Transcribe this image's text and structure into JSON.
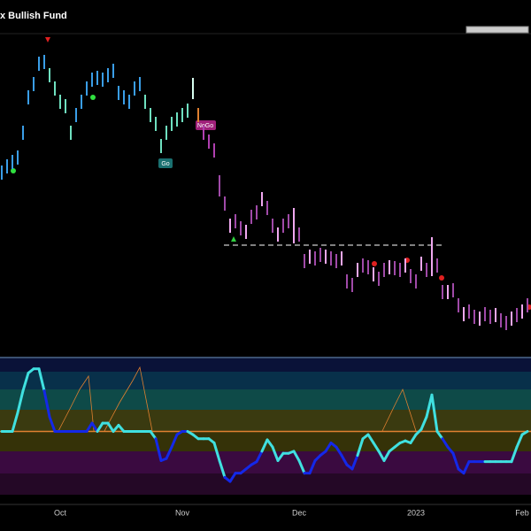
{
  "chart_data": {
    "type": "ohlc",
    "title": "x Bullish Fund",
    "annotations": [
      "NoGo",
      "Go"
    ],
    "categories": [
      null,
      null,
      null,
      null,
      null,
      null,
      null,
      null,
      null,
      null,
      null,
      "Oct",
      null,
      null,
      null,
      null,
      null,
      null,
      null,
      null,
      null,
      null,
      null,
      null,
      null,
      null,
      null,
      null,
      null,
      null,
      null,
      null,
      null,
      null,
      "Nov",
      null,
      null,
      null,
      null,
      null,
      null,
      null,
      null,
      null,
      null,
      null,
      null,
      null,
      null,
      null,
      null,
      null,
      null,
      null,
      null,
      null,
      "Dec",
      null,
      null,
      null,
      null,
      null,
      null,
      null,
      null,
      null,
      null,
      null,
      null,
      null,
      null,
      null,
      null,
      null,
      null,
      null,
      null,
      null,
      "2023",
      null,
      null,
      null,
      null,
      null,
      null,
      null,
      null,
      null,
      null,
      null,
      null,
      null,
      null,
      null,
      null,
      null,
      null,
      null,
      "Feb",
      null
    ],
    "highs": [
      213,
      220,
      225,
      230,
      258,
      298,
      313,
      336,
      338,
      323,
      308,
      293,
      288,
      258,
      278,
      293,
      308,
      318,
      320,
      318,
      323,
      328,
      303,
      298,
      293,
      308,
      313,
      293,
      278,
      268,
      243,
      258,
      268,
      273,
      278,
      283,
      312,
      278,
      258,
      248,
      238,
      202,
      178,
      153,
      158,
      150,
      146,
      163,
      168,
      183,
      173,
      153,
      143,
      153,
      158,
      165,
      143,
      113,
      118,
      116,
      120,
      118,
      116,
      113,
      116,
      90,
      86,
      103,
      108,
      106,
      98,
      93,
      103,
      106,
      105,
      103,
      108,
      96,
      90,
      110,
      103,
      132,
      108,
      78,
      78,
      80,
      63,
      53,
      56,
      50,
      48,
      53,
      50,
      52,
      46,
      43,
      48,
      52,
      56,
      63
    ],
    "lows": [
      197,
      204,
      209,
      214,
      242,
      282,
      297,
      320,
      322,
      307,
      292,
      277,
      272,
      242,
      262,
      277,
      292,
      302,
      304,
      302,
      307,
      312,
      287,
      282,
      277,
      292,
      297,
      277,
      262,
      252,
      227,
      242,
      252,
      257,
      262,
      267,
      288,
      262,
      242,
      232,
      222,
      178,
      162,
      137,
      142,
      134,
      130,
      147,
      152,
      167,
      157,
      137,
      127,
      137,
      142,
      125,
      127,
      97,
      102,
      100,
      104,
      102,
      100,
      97,
      100,
      74,
      70,
      87,
      92,
      90,
      82,
      77,
      87,
      90,
      89,
      87,
      92,
      80,
      74,
      94,
      87,
      88,
      92,
      62,
      62,
      64,
      47,
      37,
      40,
      34,
      32,
      37,
      34,
      36,
      30,
      27,
      32,
      36,
      40,
      47
    ],
    "colors": [
      "#3a9ee8",
      "#3a9ee8",
      "#3a9ee8",
      "#3a9ee8",
      "#3a9ee8",
      "#3a9ee8",
      "#3a9ee8",
      "#3a9ee8",
      "#3a9ee8",
      "#6fe0c0",
      "#6fe0c0",
      "#6fe0c0",
      "#6fe0c0",
      "#6fe0c0",
      "#3a9ee8",
      "#3a9ee8",
      "#3a9ee8",
      "#3a9ee8",
      "#3a9ee8",
      "#3a9ee8",
      "#3a9ee8",
      "#3a9ee8",
      "#3a9ee8",
      "#3a9ee8",
      "#3a9ee8",
      "#3a9ee8",
      "#3a9ee8",
      "#6fe0c0",
      "#6fe0c0",
      "#6fe0c0",
      "#6fe0c0",
      "#6fe0c0",
      "#6fe0c0",
      "#6fe0c0",
      "#6fe0c0",
      "#6fe0c0",
      "#d8fff0",
      "#e08030",
      "#b040b0",
      "#b040b0",
      "#b040b0",
      "#a04aa8",
      "#a04aa8",
      "#f0a8f0",
      "#a04aa8",
      "#a04aa8",
      "#f0a8f0",
      "#a04aa8",
      "#a04aa8",
      "#f0a8f0",
      "#a04aa8",
      "#a04aa8",
      "#f0a8f0",
      "#a04aa8",
      "#a04aa8",
      "#f0a8f0",
      "#a04aa8",
      "#a04aa8",
      "#f0a8f0",
      "#a04aa8",
      "#a04aa8",
      "#f0a8f0",
      "#a04aa8",
      "#a04aa8",
      "#f0a8f0",
      "#a04aa8",
      "#a04aa8",
      "#f0a8f0",
      "#a04aa8",
      "#a04aa8",
      "#f0a8f0",
      "#a04aa8",
      "#a04aa8",
      "#f0a8f0",
      "#a04aa8",
      "#a04aa8",
      "#f0a8f0",
      "#a04aa8",
      "#a04aa8",
      "#f0a8f0",
      "#a04aa8",
      "#f0a8f0",
      "#a04aa8",
      "#a04aa8",
      "#f0a8f0",
      "#a04aa8",
      "#a04aa8",
      "#f0a8f0",
      "#a04aa8",
      "#a04aa8",
      "#f0a8f0",
      "#a04aa8",
      "#a04aa8",
      "#f0a8f0",
      "#a04aa8",
      "#a04aa8",
      "#f0a8f0",
      "#a04aa8",
      "#f0a8f0",
      "#a04aa8"
    ],
    "ylim": [
      0,
      362
    ],
    "oscillator": {
      "values": [
        0,
        0,
        0,
        1.8,
        3.9,
        5.6,
        6,
        6,
        3.9,
        1.4,
        0,
        0,
        0,
        0,
        0,
        0,
        0,
        0.8,
        0,
        0.8,
        0.8,
        0,
        0.6,
        0,
        0,
        0,
        0,
        0,
        0,
        -0.7,
        -2.8,
        -2.6,
        -1.5,
        -0.3,
        0,
        0,
        -0.3,
        -0.7,
        -0.7,
        -0.7,
        -1.1,
        -2.8,
        -4.4,
        -4.8,
        -4,
        -4,
        -3.6,
        -3.2,
        -2.9,
        -1.9,
        -0.8,
        -1.5,
        -2.8,
        -2.1,
        -2.1,
        -1.9,
        -2.8,
        -4,
        -4,
        -2.8,
        -2.3,
        -1.9,
        -1.1,
        -1.5,
        -2.3,
        -3.2,
        -3.6,
        -2.3,
        -0.7,
        -0.3,
        -1.1,
        -1.9,
        -2.8,
        -1.9,
        -1.5,
        -1.1,
        -0.9,
        -1.1,
        -0.3,
        0.2,
        1.4,
        3.5,
        0,
        -0.7,
        -1.5,
        -2.1,
        -3.6,
        -4,
        -2.9,
        -2.9,
        -2.9,
        -2.9,
        -2.9,
        -2.9,
        -2.9,
        -2.9,
        -2.9,
        -1.5,
        -0.3,
        0
      ],
      "colors": [
        "#40e0e0",
        "#40e0e0",
        "#40e0e0",
        "#40e0e0",
        "#40e0e0",
        "#40e0e0",
        "#40e0e0",
        "#40e0e0",
        "#1428e8",
        "#1428e8",
        "#1428e8",
        "#1428e8",
        "#1428e8",
        "#1428e8",
        "#1428e8",
        "#1428e8",
        "#1428e8",
        "#1428e8",
        "#40e0e0",
        "#40e0e0",
        "#40e0e0",
        "#40e0e0",
        "#40e0e0",
        "#40e0e0",
        "#40e0e0",
        "#40e0e0",
        "#40e0e0",
        "#40e0e0",
        "#40e0e0",
        "#1428e8",
        "#1428e8",
        "#1428e8",
        "#1428e8",
        "#1428e8",
        "#1428e8",
        "#40e0e0",
        "#40e0e0",
        "#40e0e0",
        "#40e0e0",
        "#40e0e0",
        "#40e0e0",
        "#40e0e0",
        "#1428e8",
        "#1428e8",
        "#1428e8",
        "#1428e8",
        "#1428e8",
        "#1428e8",
        "#1428e8",
        "#40e0e0",
        "#40e0e0",
        "#40e0e0",
        "#40e0e0",
        "#40e0e0",
        "#40e0e0",
        "#40e0e0",
        "#40e0e0",
        "#1428e8",
        "#1428e8",
        "#1428e8",
        "#1428e8",
        "#1428e8",
        "#1428e8",
        "#1428e8",
        "#1428e8",
        "#1428e8",
        "#1428e8",
        "#40e0e0",
        "#40e0e0",
        "#40e0e0",
        "#40e0e0",
        "#40e0e0",
        "#40e0e0",
        "#40e0e0",
        "#40e0e0",
        "#40e0e0",
        "#40e0e0",
        "#40e0e0",
        "#40e0e0",
        "#40e0e0",
        "#40e0e0",
        "#40e0e0",
        "#40e0e0",
        "#1428e8",
        "#1428e8",
        "#1428e8",
        "#1428e8",
        "#1428e8",
        "#1428e8",
        "#1428e8",
        "#1428e8",
        "#40e0e0",
        "#40e0e0",
        "#40e0e0",
        "#40e0e0",
        "#40e0e0",
        "#40e0e0",
        "#40e0e0",
        "#40e0e0",
        "#40e0e0"
      ],
      "ylim": [
        -7,
        7
      ],
      "zero_color": "#e08030"
    }
  }
}
